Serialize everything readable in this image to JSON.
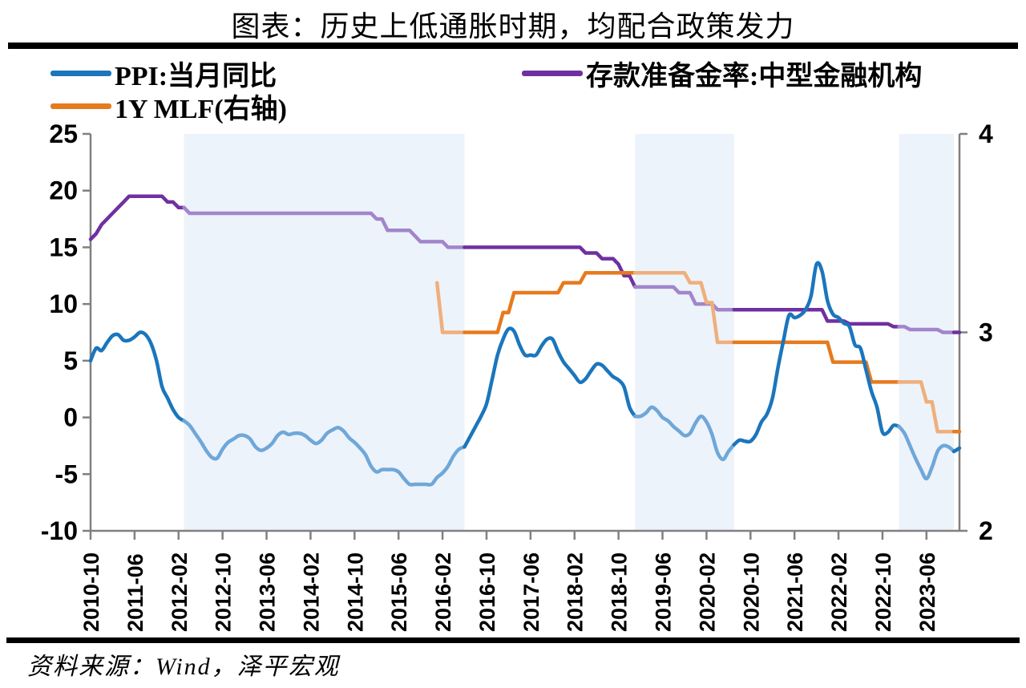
{
  "title": "图表：历史上低通胀时期，均配合政策发力",
  "source": "资料来源：Wind，泽平宏观",
  "legend": [
    {
      "label": "PPI:当月同比",
      "color": "#1B76BC"
    },
    {
      "label": "存款准备金率:中型金融机构",
      "color": "#7030A0"
    },
    {
      "label": "1Y MLF(右轴)",
      "color": "#E67A1E"
    }
  ],
  "chart_data": {
    "type": "line",
    "title": "图表：历史上低通胀时期，均配合政策发力",
    "x_start": "2010-10",
    "x_end": "2023-12",
    "x_tick_labels": [
      "2010-10",
      "2011-06",
      "2012-02",
      "2012-10",
      "2013-06",
      "2014-02",
      "2014-10",
      "2015-06",
      "2016-02",
      "2016-10",
      "2017-06",
      "2018-02",
      "2018-10",
      "2019-06",
      "2020-02",
      "2020-10",
      "2021-06",
      "2022-02",
      "2022-10",
      "2023-06"
    ],
    "left_axis": {
      "min": -10,
      "max": 25,
      "ticks": [
        25,
        20,
        15,
        10,
        5,
        0,
        -5,
        -10
      ]
    },
    "right_axis": {
      "min": 2,
      "max": 4,
      "ticks": [
        4,
        3,
        2
      ]
    },
    "shaded_periods": [
      [
        "2012-03",
        "2016-06"
      ],
      [
        "2019-01",
        "2020-07"
      ],
      [
        "2023-01",
        "2023-11"
      ]
    ],
    "band_color": "#EDF3FA",
    "axis_color": "#808080",
    "series": [
      {
        "name": "存款准备金率:中型金融机构",
        "axis": "left",
        "kind": "steps",
        "smooth": false,
        "color": "#7030A0",
        "color_light": "#A285CC",
        "steps": [
          [
            "2010-10",
            15.7
          ],
          [
            "2010-11",
            16.2
          ],
          [
            "2010-12",
            17
          ],
          [
            "2011-01",
            17.5
          ],
          [
            "2011-02",
            18
          ],
          [
            "2011-03",
            18.5
          ],
          [
            "2011-04",
            19
          ],
          [
            "2011-05",
            19.5
          ],
          [
            "2011-12",
            19
          ],
          [
            "2012-02",
            18.5
          ],
          [
            "2012-04",
            18
          ],
          [
            "2015-02",
            17.5
          ],
          [
            "2015-04",
            16.5
          ],
          [
            "2015-09",
            16
          ],
          [
            "2015-10",
            15.5
          ],
          [
            "2016-03",
            15
          ],
          [
            "2018-04",
            14.5
          ],
          [
            "2018-07",
            14
          ],
          [
            "2018-10",
            13.5
          ],
          [
            "2018-11",
            12.5
          ],
          [
            "2019-01",
            11.5
          ],
          [
            "2019-09",
            11
          ],
          [
            "2019-12",
            10
          ],
          [
            "2020-04",
            9.5
          ],
          [
            "2021-12",
            8.5
          ],
          [
            "2022-04",
            8.25
          ],
          [
            "2022-12",
            8
          ],
          [
            "2023-03",
            7.75
          ],
          [
            "2023-09",
            7.5
          ]
        ]
      },
      {
        "name": "1Y MLF(右轴)",
        "axis": "right",
        "kind": "steps",
        "smooth": false,
        "color": "#E67A1E",
        "color_light": "#EFAF7C",
        "steps": [
          [
            "2016-01",
            3.25
          ],
          [
            "2016-02",
            3.0
          ],
          [
            "2017-01",
            3.1
          ],
          [
            "2017-03",
            3.2
          ],
          [
            "2017-12",
            3.25
          ],
          [
            "2018-04",
            3.3
          ],
          [
            "2019-11",
            3.25
          ],
          [
            "2020-02",
            3.15
          ],
          [
            "2020-04",
            2.95
          ],
          [
            "2022-01",
            2.85
          ],
          [
            "2022-08",
            2.75
          ],
          [
            "2023-06",
            2.65
          ],
          [
            "2023-08",
            2.5
          ]
        ]
      },
      {
        "name": "PPI:当月同比",
        "axis": "left",
        "kind": "monthly",
        "smooth": true,
        "color": "#1B76BC",
        "color_light": "#6FA7D9",
        "start": "2010-10",
        "values": [
          5.0,
          6.1,
          5.9,
          6.6,
          7.2,
          7.3,
          6.8,
          6.8,
          7.1,
          7.5,
          7.3,
          6.5,
          5.0,
          2.7,
          1.7,
          0.7,
          0.0,
          -0.3,
          -0.7,
          -1.4,
          -2.1,
          -2.9,
          -3.5,
          -3.6,
          -2.8,
          -2.2,
          -1.9,
          -1.6,
          -1.6,
          -1.9,
          -2.6,
          -2.9,
          -2.7,
          -2.3,
          -1.6,
          -1.3,
          -1.5,
          -1.4,
          -1.4,
          -1.6,
          -2.0,
          -2.3,
          -2.0,
          -1.4,
          -1.1,
          -0.9,
          -1.2,
          -1.8,
          -2.2,
          -2.7,
          -3.3,
          -4.3,
          -4.8,
          -4.6,
          -4.6,
          -4.6,
          -4.8,
          -5.4,
          -5.9,
          -5.9,
          -5.9,
          -5.9,
          -5.9,
          -5.3,
          -4.9,
          -4.3,
          -3.4,
          -2.8,
          -2.6,
          -1.7,
          -0.8,
          0.1,
          1.2,
          3.3,
          5.5,
          6.9,
          7.8,
          7.6,
          6.4,
          5.5,
          5.5,
          5.5,
          6.3,
          6.9,
          6.9,
          5.8,
          4.9,
          4.3,
          3.7,
          3.1,
          3.4,
          4.1,
          4.7,
          4.6,
          4.1,
          3.6,
          3.3,
          2.7,
          0.9,
          0.1,
          0.1,
          0.4,
          0.9,
          0.6,
          0.0,
          -0.3,
          -0.8,
          -1.2,
          -1.6,
          -1.4,
          -0.5,
          0.1,
          -0.4,
          -1.5,
          -3.1,
          -3.7,
          -3.0,
          -2.4,
          -2.0,
          -2.1,
          -2.1,
          -1.5,
          -0.4,
          0.3,
          1.7,
          4.4,
          6.8,
          9.0,
          8.8,
          9.0,
          9.5,
          10.7,
          13.5,
          12.9,
          10.3,
          9.1,
          8.8,
          8.3,
          8.0,
          6.4,
          6.1,
          4.2,
          2.3,
          0.9,
          -1.3,
          -1.3,
          -0.7,
          -0.8,
          -1.4,
          -2.5,
          -3.6,
          -4.6,
          -5.4,
          -4.4,
          -3.0,
          -2.5,
          -2.6,
          -3.0,
          -2.7
        ]
      }
    ]
  }
}
